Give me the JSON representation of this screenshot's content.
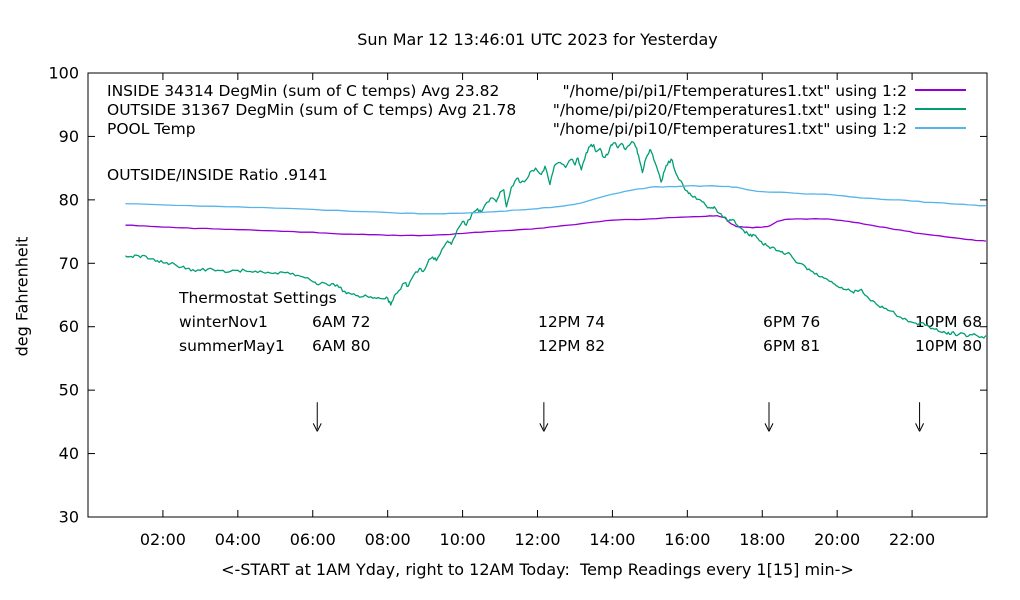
{
  "title": "Sun Mar 12 13:46:01 UTC 2023 for Yesterday",
  "chart_data": {
    "type": "line",
    "title": "Sun Mar 12 13:46:01 UTC 2023 for Yesterday",
    "xlabel": "<-START at 1AM Yday, right to 12AM Today:  Temp Readings every 1[15] min->",
    "ylabel": "deg Fahrenheit",
    "xlim": [
      0,
      24
    ],
    "ylim": [
      30,
      100
    ],
    "grid": false,
    "legend_position": "top-right-inside",
    "xticks": {
      "values": [
        2,
        4,
        6,
        8,
        10,
        12,
        14,
        16,
        18,
        20,
        22
      ],
      "labels": [
        "02:00",
        "04:00",
        "06:00",
        "08:00",
        "10:00",
        "12:00",
        "14:00",
        "16:00",
        "18:00",
        "20:00",
        "22:00"
      ]
    },
    "yticks": [
      30,
      40,
      50,
      60,
      70,
      80,
      90,
      100
    ],
    "legend": [
      {
        "label": "INSIDE 34314 DegMin (sum of C temps) Avg 23.82",
        "file_label": "\"/home/pi/pi1/Ftemperatures1.txt\" using 1:2",
        "color": "#9400d3"
      },
      {
        "label": "OUTSIDE 31367 DegMin (sum of C temps) Avg 21.78",
        "file_label": "\"/home/pi/pi20/Ftemperatures1.txt\" using 1:2",
        "color": "#009e73"
      },
      {
        "label": "POOL Temp",
        "file_label": "\"/home/pi/pi10/Ftemperatures1.txt\" using 1:2",
        "color": "#56b4e9"
      }
    ],
    "annotations": {
      "ratio_text": "OUTSIDE/INSIDE Ratio .9141",
      "thermostat": {
        "heading": "Thermostat Settings",
        "rows": [
          {
            "name": "winterNov1",
            "settings": [
              "6AM 72",
              "12PM 74",
              "6PM 76",
              "10PM 68"
            ]
          },
          {
            "name": "summerMay1",
            "settings": [
              "6AM 80",
              "12PM 82",
              "6PM 81",
              "10PM 80"
            ]
          }
        ]
      },
      "arrows": {
        "x_hours": [
          6.12,
          12.17,
          18.18,
          22.2
        ],
        "from_f": 48.1,
        "to_f": 43.5
      }
    },
    "series": [
      {
        "name": "INSIDE",
        "color": "#9400d3",
        "jitter": 0.06,
        "points": [
          [
            1.0,
            76.0
          ],
          [
            1.5,
            75.9
          ],
          [
            2.0,
            75.7
          ],
          [
            2.5,
            75.6
          ],
          [
            3.0,
            75.5
          ],
          [
            3.5,
            75.4
          ],
          [
            4.0,
            75.3
          ],
          [
            4.5,
            75.2
          ],
          [
            5.0,
            75.1
          ],
          [
            5.5,
            75.0
          ],
          [
            6.0,
            74.9
          ],
          [
            6.5,
            74.7
          ],
          [
            7.0,
            74.6
          ],
          [
            7.5,
            74.5
          ],
          [
            8.0,
            74.4
          ],
          [
            8.5,
            74.4
          ],
          [
            9.0,
            74.4
          ],
          [
            9.5,
            74.5
          ],
          [
            10.0,
            74.7
          ],
          [
            10.5,
            74.9
          ],
          [
            11.0,
            75.1
          ],
          [
            11.5,
            75.3
          ],
          [
            12.0,
            75.5
          ],
          [
            12.5,
            75.8
          ],
          [
            13.0,
            76.1
          ],
          [
            13.5,
            76.5
          ],
          [
            14.0,
            76.8
          ],
          [
            14.5,
            76.9
          ],
          [
            15.0,
            77.0
          ],
          [
            15.5,
            77.2
          ],
          [
            16.0,
            77.3
          ],
          [
            16.5,
            77.4
          ],
          [
            16.8,
            77.5
          ],
          [
            17.0,
            77.2
          ],
          [
            17.15,
            76.3
          ],
          [
            17.3,
            75.8
          ],
          [
            17.5,
            75.7
          ],
          [
            17.75,
            75.6
          ],
          [
            18.0,
            75.7
          ],
          [
            18.2,
            75.9
          ],
          [
            18.4,
            76.6
          ],
          [
            18.6,
            76.9
          ],
          [
            18.9,
            77.0
          ],
          [
            19.3,
            77.0
          ],
          [
            19.7,
            77.0
          ],
          [
            20.0,
            76.8
          ],
          [
            20.3,
            76.6
          ],
          [
            20.7,
            76.2
          ],
          [
            21.0,
            75.9
          ],
          [
            21.4,
            75.5
          ],
          [
            21.8,
            75.1
          ],
          [
            22.2,
            74.7
          ],
          [
            22.6,
            74.4
          ],
          [
            23.0,
            74.1
          ],
          [
            23.4,
            73.8
          ],
          [
            23.7,
            73.6
          ],
          [
            23.97,
            73.5
          ]
        ]
      },
      {
        "name": "OUTSIDE",
        "color": "#009e73",
        "jitter": 0.28,
        "points": [
          [
            1.0,
            71.2
          ],
          [
            1.1,
            71.0
          ],
          [
            1.25,
            71.3
          ],
          [
            1.4,
            70.9
          ],
          [
            1.55,
            71.1
          ],
          [
            1.7,
            70.7
          ],
          [
            1.85,
            70.4
          ],
          [
            2.0,
            70.1
          ],
          [
            2.15,
            69.8
          ],
          [
            2.3,
            69.9
          ],
          [
            2.5,
            69.4
          ],
          [
            2.65,
            69.2
          ],
          [
            2.8,
            69.0
          ],
          [
            3.0,
            68.9
          ],
          [
            3.2,
            69.1
          ],
          [
            3.4,
            68.8
          ],
          [
            3.6,
            68.9
          ],
          [
            3.8,
            68.7
          ],
          [
            4.0,
            68.9
          ],
          [
            4.2,
            68.8
          ],
          [
            4.4,
            68.6
          ],
          [
            4.6,
            68.8
          ],
          [
            4.8,
            68.6
          ],
          [
            5.0,
            68.5
          ],
          [
            5.2,
            68.6
          ],
          [
            5.4,
            68.3
          ],
          [
            5.6,
            68.1
          ],
          [
            5.8,
            67.7
          ],
          [
            6.0,
            67.1
          ],
          [
            6.1,
            66.7
          ],
          [
            6.25,
            67.0
          ],
          [
            6.4,
            66.6
          ],
          [
            6.55,
            66.8
          ],
          [
            6.7,
            66.2
          ],
          [
            6.85,
            65.6
          ],
          [
            7.0,
            65.2
          ],
          [
            7.15,
            64.9
          ],
          [
            7.3,
            64.7
          ],
          [
            7.45,
            64.8
          ],
          [
            7.6,
            64.5
          ],
          [
            7.75,
            64.6
          ],
          [
            7.9,
            64.4
          ],
          [
            8.0,
            64.5
          ],
          [
            8.08,
            63.4
          ],
          [
            8.18,
            64.9
          ],
          [
            8.3,
            65.7
          ],
          [
            8.45,
            66.9
          ],
          [
            8.55,
            66.4
          ],
          [
            8.7,
            68.2
          ],
          [
            8.85,
            69.2
          ],
          [
            8.95,
            68.7
          ],
          [
            9.1,
            70.6
          ],
          [
            9.2,
            71.0
          ],
          [
            9.3,
            70.4
          ],
          [
            9.45,
            72.2
          ],
          [
            9.6,
            73.5
          ],
          [
            9.7,
            73.0
          ],
          [
            9.85,
            75.2
          ],
          [
            10.0,
            76.6
          ],
          [
            10.1,
            76.0
          ],
          [
            10.25,
            77.8
          ],
          [
            10.4,
            78.6
          ],
          [
            10.5,
            78.0
          ],
          [
            10.65,
            79.6
          ],
          [
            10.8,
            80.3
          ],
          [
            10.9,
            79.7
          ],
          [
            11.0,
            81.2
          ],
          [
            11.1,
            81.6
          ],
          [
            11.17,
            78.9
          ],
          [
            11.3,
            82.0
          ],
          [
            11.45,
            83.4
          ],
          [
            11.55,
            82.7
          ],
          [
            11.7,
            83.2
          ],
          [
            11.8,
            84.4
          ],
          [
            11.95,
            85.0
          ],
          [
            12.1,
            84.0
          ],
          [
            12.2,
            85.3
          ],
          [
            12.33,
            82.4
          ],
          [
            12.45,
            85.4
          ],
          [
            12.6,
            85.9
          ],
          [
            12.75,
            85.1
          ],
          [
            12.9,
            86.4
          ],
          [
            13.0,
            85.5
          ],
          [
            13.08,
            86.6
          ],
          [
            13.17,
            84.7
          ],
          [
            13.3,
            87.4
          ],
          [
            13.4,
            88.4
          ],
          [
            13.5,
            88.7
          ],
          [
            13.57,
            87.6
          ],
          [
            13.67,
            88.1
          ],
          [
            13.77,
            86.7
          ],
          [
            13.87,
            87.1
          ],
          [
            13.97,
            88.7
          ],
          [
            14.05,
            89.0
          ],
          [
            14.15,
            88.2
          ],
          [
            14.25,
            88.9
          ],
          [
            14.35,
            87.9
          ],
          [
            14.45,
            88.6
          ],
          [
            14.55,
            89.1
          ],
          [
            14.65,
            88.1
          ],
          [
            14.72,
            86.3
          ],
          [
            14.8,
            84.3
          ],
          [
            14.9,
            86.6
          ],
          [
            15.0,
            87.9
          ],
          [
            15.07,
            87.2
          ],
          [
            15.17,
            85.4
          ],
          [
            15.3,
            82.8
          ],
          [
            15.4,
            84.7
          ],
          [
            15.5,
            86.1
          ],
          [
            15.6,
            86.2
          ],
          [
            15.7,
            84.1
          ],
          [
            15.8,
            83.1
          ],
          [
            15.9,
            82.1
          ],
          [
            16.0,
            81.4
          ],
          [
            16.1,
            80.7
          ],
          [
            16.25,
            80.1
          ],
          [
            16.4,
            79.7
          ],
          [
            16.5,
            79.1
          ],
          [
            16.62,
            78.7
          ],
          [
            16.72,
            78.9
          ],
          [
            16.85,
            77.9
          ],
          [
            17.0,
            77.3
          ],
          [
            17.1,
            76.6
          ],
          [
            17.2,
            76.9
          ],
          [
            17.35,
            75.9
          ],
          [
            17.5,
            75.2
          ],
          [
            17.62,
            74.6
          ],
          [
            17.72,
            74.2
          ],
          [
            17.82,
            74.4
          ],
          [
            17.92,
            73.6
          ],
          [
            18.0,
            73.1
          ],
          [
            18.12,
            72.8
          ],
          [
            18.25,
            72.5
          ],
          [
            18.37,
            72.0
          ],
          [
            18.5,
            71.8
          ],
          [
            18.6,
            71.4
          ],
          [
            18.7,
            71.7
          ],
          [
            18.85,
            70.6
          ],
          [
            19.0,
            70.0
          ],
          [
            19.15,
            69.5
          ],
          [
            19.3,
            68.8
          ],
          [
            19.45,
            68.4
          ],
          [
            19.6,
            67.9
          ],
          [
            19.75,
            67.4
          ],
          [
            19.9,
            66.8
          ],
          [
            20.0,
            66.4
          ],
          [
            20.12,
            66.2
          ],
          [
            20.25,
            65.8
          ],
          [
            20.4,
            65.5
          ],
          [
            20.52,
            65.7
          ],
          [
            20.65,
            65.9
          ],
          [
            20.8,
            64.8
          ],
          [
            20.95,
            64.1
          ],
          [
            21.1,
            63.3
          ],
          [
            21.25,
            62.9
          ],
          [
            21.4,
            62.5
          ],
          [
            21.55,
            62.0
          ],
          [
            21.7,
            61.5
          ],
          [
            21.85,
            61.1
          ],
          [
            22.0,
            60.7
          ],
          [
            22.15,
            60.3
          ],
          [
            22.3,
            60.6
          ],
          [
            22.45,
            60.0
          ],
          [
            22.6,
            59.6
          ],
          [
            22.75,
            59.2
          ],
          [
            22.9,
            59.0
          ],
          [
            23.0,
            58.8
          ],
          [
            23.1,
            59.2
          ],
          [
            23.2,
            58.6
          ],
          [
            23.35,
            59.0
          ],
          [
            23.5,
            58.5
          ],
          [
            23.65,
            58.9
          ],
          [
            23.8,
            58.3
          ],
          [
            23.97,
            58.6
          ]
        ]
      },
      {
        "name": "POOL",
        "color": "#56b4e9",
        "jitter": 0.07,
        "points": [
          [
            1.0,
            79.4
          ],
          [
            2.0,
            79.2
          ],
          [
            3.0,
            79.0
          ],
          [
            4.0,
            78.9
          ],
          [
            5.0,
            78.7
          ],
          [
            6.0,
            78.5
          ],
          [
            7.0,
            78.2
          ],
          [
            8.0,
            78.0
          ],
          [
            8.5,
            77.9
          ],
          [
            9.0,
            77.8
          ],
          [
            9.5,
            77.8
          ],
          [
            10.0,
            77.9
          ],
          [
            10.5,
            78.0
          ],
          [
            11.0,
            78.2
          ],
          [
            11.5,
            78.4
          ],
          [
            12.0,
            78.6
          ],
          [
            12.5,
            78.9
          ],
          [
            13.0,
            79.3
          ],
          [
            13.5,
            80.1
          ],
          [
            14.0,
            80.9
          ],
          [
            14.5,
            81.5
          ],
          [
            15.0,
            82.0
          ],
          [
            15.5,
            82.1
          ],
          [
            16.0,
            82.2
          ],
          [
            16.5,
            82.2
          ],
          [
            17.0,
            82.1
          ],
          [
            17.3,
            82.0
          ],
          [
            17.6,
            81.6
          ],
          [
            18.0,
            81.3
          ],
          [
            18.5,
            81.2
          ],
          [
            19.0,
            81.0
          ],
          [
            19.5,
            80.9
          ],
          [
            20.0,
            80.7
          ],
          [
            20.5,
            80.4
          ],
          [
            21.0,
            80.2
          ],
          [
            21.5,
            80.0
          ],
          [
            22.0,
            79.8
          ],
          [
            22.5,
            79.6
          ],
          [
            23.0,
            79.4
          ],
          [
            23.5,
            79.2
          ],
          [
            23.97,
            79.1
          ]
        ]
      }
    ]
  }
}
